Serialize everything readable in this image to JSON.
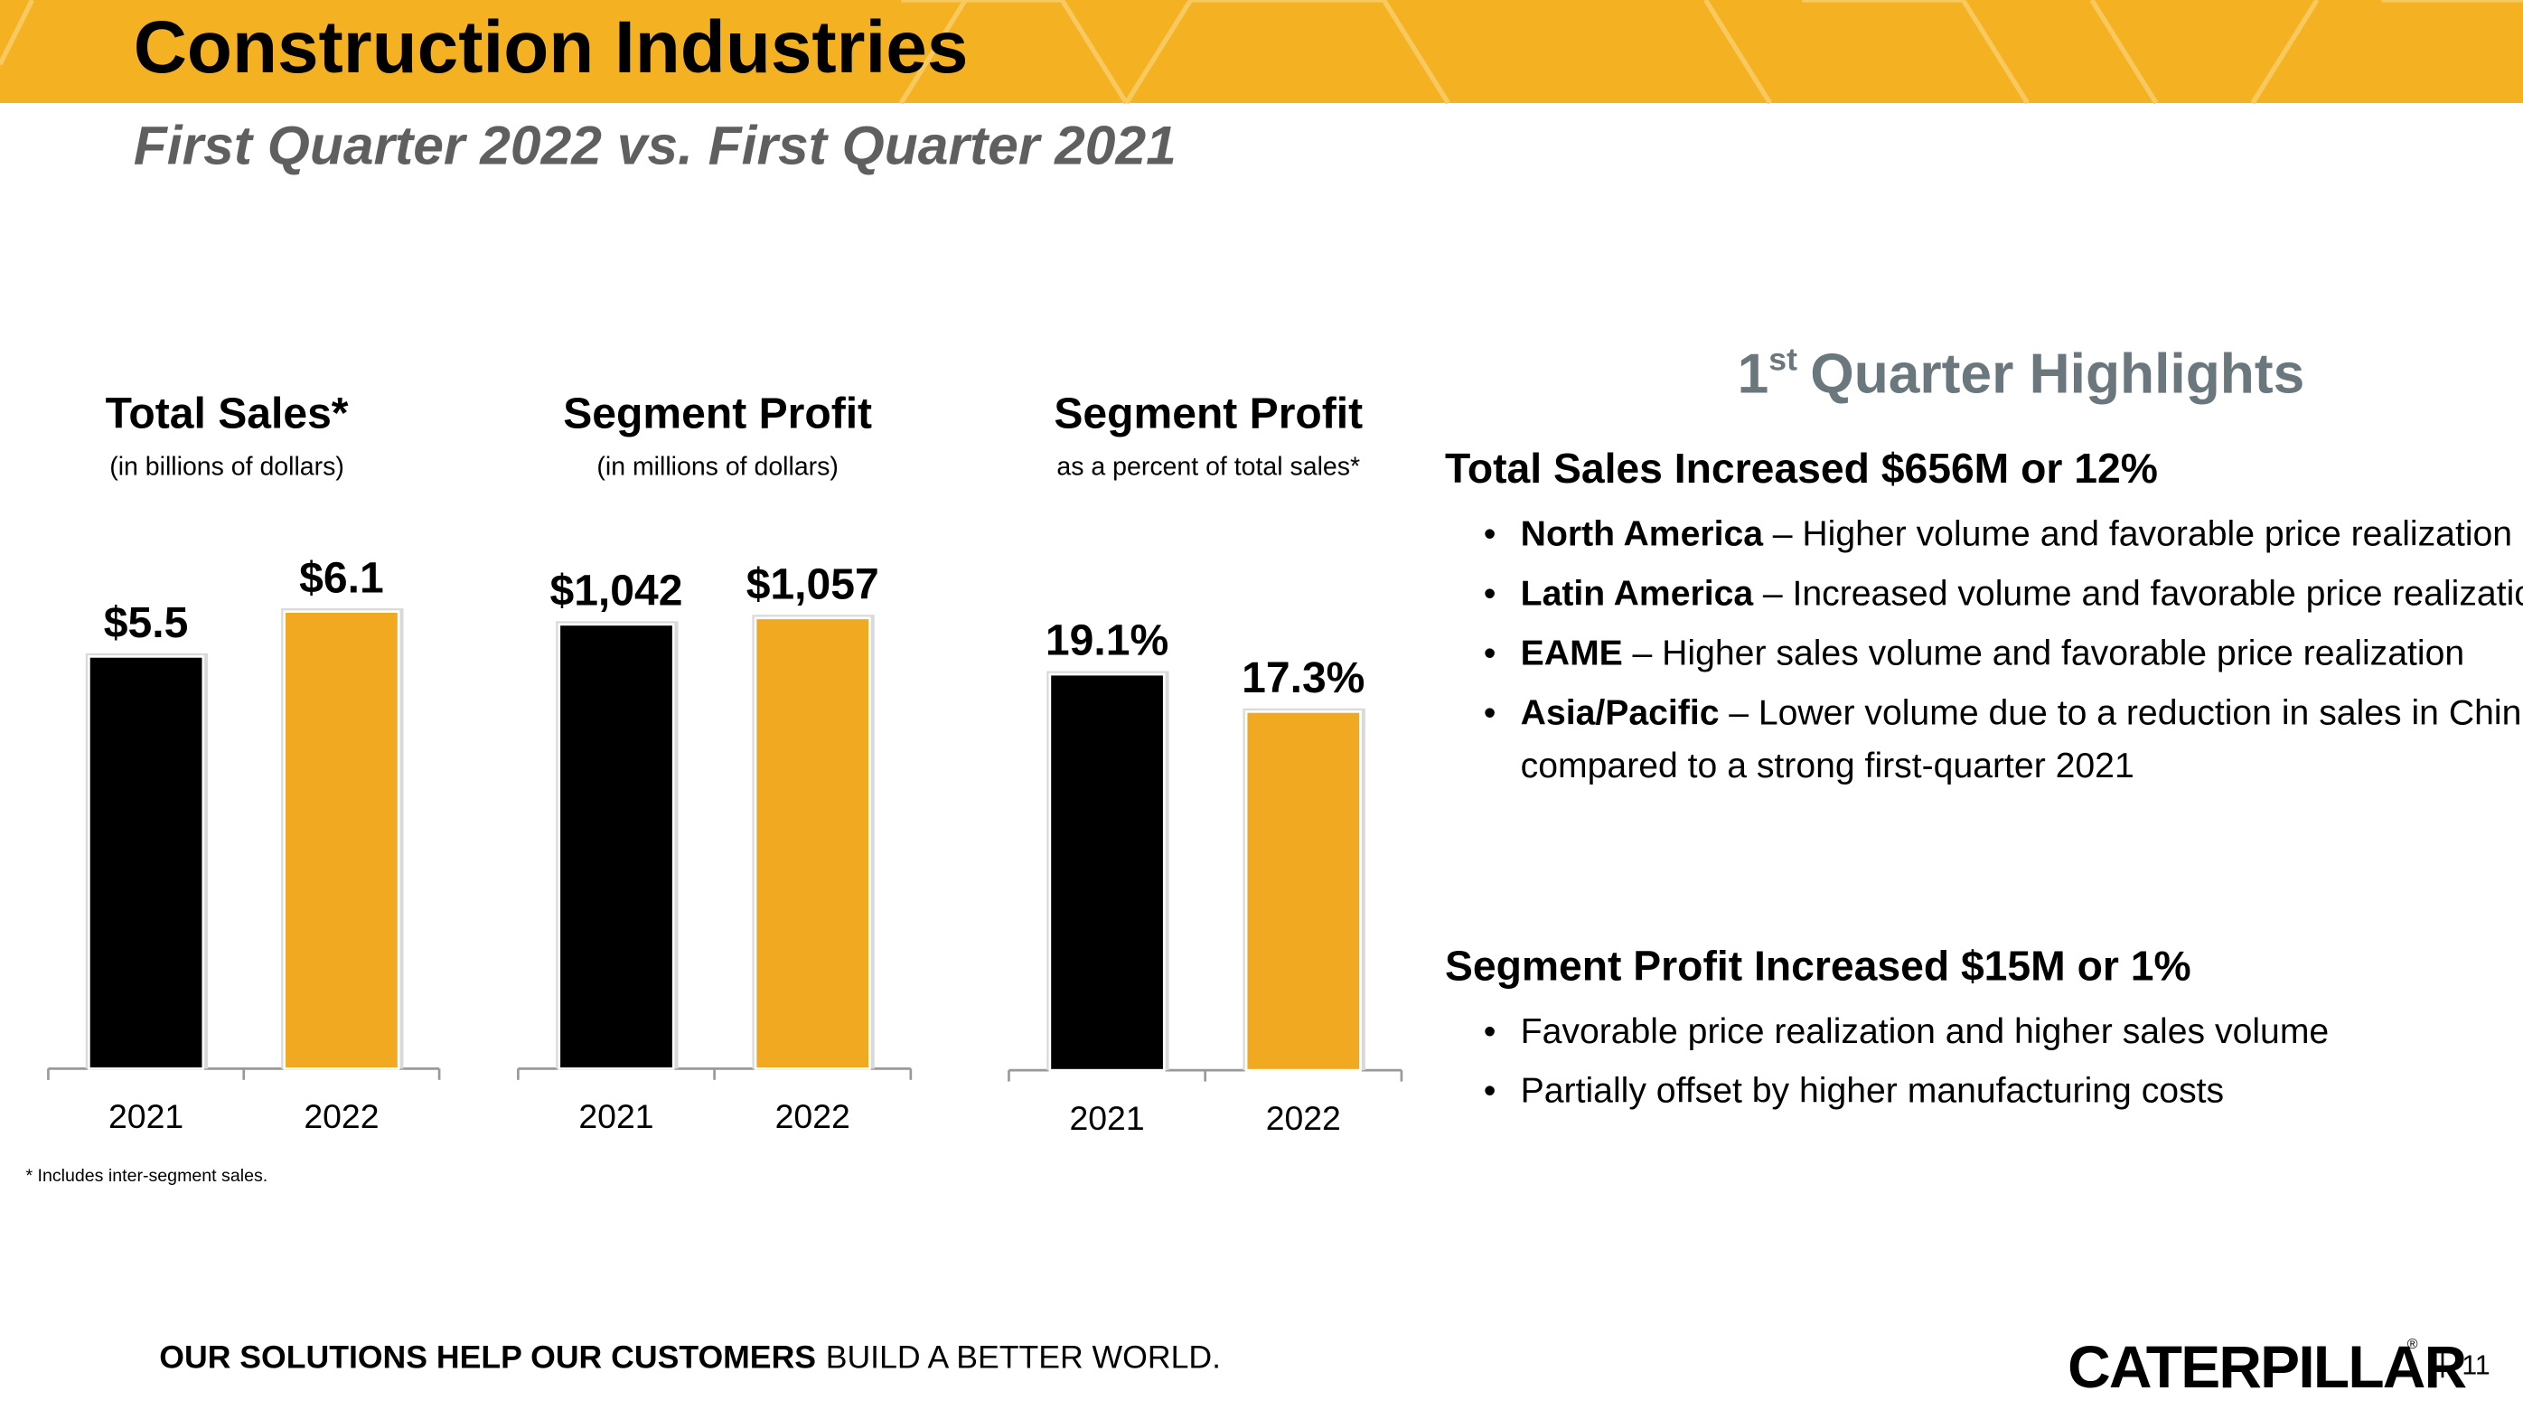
{
  "header": {
    "title": "Construction Industries",
    "subtitle": "First Quarter 2022 vs. First Quarter 2021"
  },
  "chart_data": [
    {
      "type": "bar",
      "title": "Total Sales*",
      "subtitle": "(in billions of dollars)",
      "categories": [
        "2021",
        "2022"
      ],
      "values": [
        5.5,
        6.1
      ],
      "value_labels": [
        "$5.5",
        "$6.1"
      ],
      "colors": [
        "#000000",
        "#f0a920"
      ]
    },
    {
      "type": "bar",
      "title": "Segment Profit",
      "subtitle": "(in millions of dollars)",
      "categories": [
        "2021",
        "2022"
      ],
      "values": [
        1042,
        1057
      ],
      "value_labels": [
        "$1,042",
        "$1,057"
      ],
      "colors": [
        "#000000",
        "#f0a920"
      ]
    },
    {
      "type": "bar",
      "title": "Segment Profit",
      "subtitle": "as a percent of total sales*",
      "categories": [
        "2021",
        "2022"
      ],
      "values": [
        19.1,
        17.3
      ],
      "value_labels": [
        "19.1%",
        "17.3%"
      ],
      "colors": [
        "#000000",
        "#f0a920"
      ]
    }
  ],
  "footnote": "* Includes inter-segment sales.",
  "highlights": {
    "title": {
      "number": "1",
      "suffix": "st",
      "rest": "Quarter Highlights"
    },
    "sections": [
      {
        "heading": "Total Sales Increased $656M or 12%",
        "bullets": [
          {
            "bold": "North America",
            "text": [
              "– Higher volume and favorable price realization"
            ]
          },
          {
            "bold": "Latin America",
            "text": [
              "– Increased volume and favorable price realization"
            ]
          },
          {
            "bold": "EAME",
            "text": [
              "– Higher sales volume and favorable price realization"
            ]
          },
          {
            "bold": "Asia/Pacific",
            "text": [
              "– Lower volume due to a reduction in sales in China",
              "compared to a strong first-quarter 2021"
            ]
          }
        ]
      },
      {
        "heading": "Segment Profit Increased $15M or 1%",
        "bullets": [
          {
            "bold": null,
            "text": [
              "Favorable price realization and higher sales volume"
            ]
          },
          {
            "bold": null,
            "text": [
              "Partially offset by higher manufacturing costs"
            ]
          }
        ]
      }
    ]
  },
  "footer": {
    "tagline_bold": "OUR SOLUTIONS HELP OUR CUSTOMERS",
    "tagline_rest": "BUILD A BETTER WORLD.",
    "logo": "CATERPILLAR",
    "page_number": "11"
  }
}
